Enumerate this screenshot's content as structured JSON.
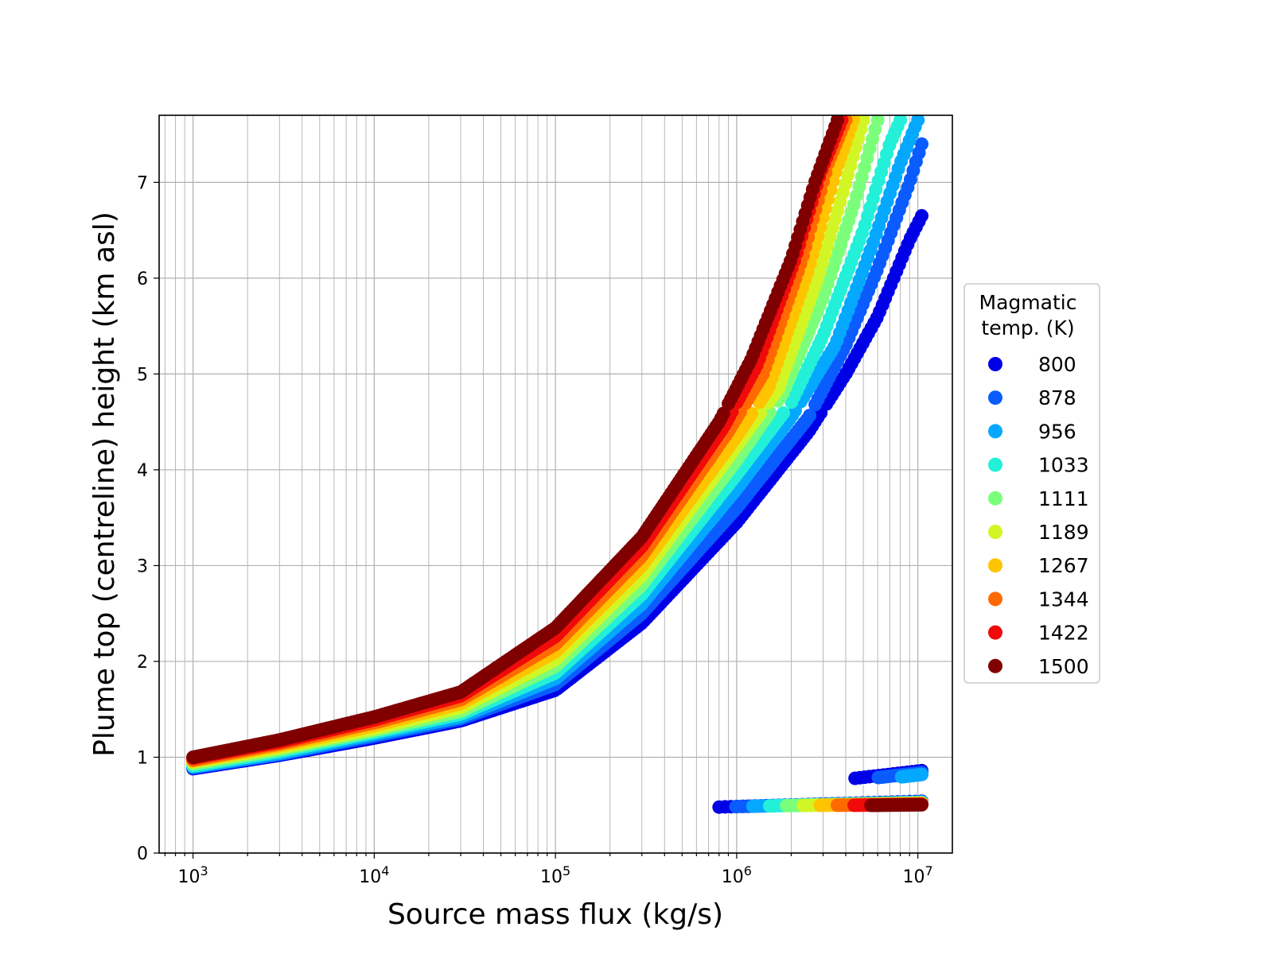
{
  "chart_data": {
    "type": "scatter",
    "title": "",
    "xlabel": "Source mass flux (kg/s)",
    "ylabel": "Plume top (centreline) height (km asl)",
    "xscale": "log",
    "xlim": [
      650,
      15500000
    ],
    "ylim": [
      0,
      7.7
    ],
    "x_ticks": [
      {
        "value": 1000,
        "base": "10",
        "exp": "3"
      },
      {
        "value": 10000,
        "base": "10",
        "exp": "4"
      },
      {
        "value": 100000,
        "base": "10",
        "exp": "5"
      },
      {
        "value": 1000000,
        "base": "10",
        "exp": "6"
      },
      {
        "value": 10000000,
        "base": "10",
        "exp": "7"
      }
    ],
    "y_ticks": [
      0,
      1,
      2,
      3,
      4,
      5,
      6,
      7
    ],
    "grid": true,
    "legend": {
      "title_lines": [
        "Magmatic",
        "temp. (K)"
      ],
      "placement": "right, outside plot"
    },
    "series": [
      {
        "name": "800",
        "color": "#0000e6",
        "main": [
          [
            1000,
            0.88
          ],
          [
            3000,
            1.02
          ],
          [
            10000,
            1.2
          ],
          [
            30000,
            1.38
          ],
          [
            100000,
            1.7
          ],
          [
            300000,
            2.4
          ],
          [
            1000000,
            3.45
          ],
          [
            2500000,
            4.4
          ],
          [
            4000000,
            5.0
          ],
          [
            6000000,
            5.6
          ],
          [
            9000000,
            6.4
          ],
          [
            10500000,
            6.65
          ]
        ]
      },
      {
        "name": "878",
        "color": "#0a5cff",
        "main": [
          [
            1000,
            0.89
          ],
          [
            3000,
            1.03
          ],
          [
            10000,
            1.22
          ],
          [
            30000,
            1.4
          ],
          [
            100000,
            1.76
          ],
          [
            300000,
            2.5
          ],
          [
            1000000,
            3.6
          ],
          [
            2500000,
            4.55
          ],
          [
            4000000,
            5.3
          ],
          [
            6000000,
            6.1
          ],
          [
            9000000,
            7.0
          ],
          [
            10500000,
            7.4
          ]
        ]
      },
      {
        "name": "956",
        "color": "#05a8ff",
        "main": [
          [
            1000,
            0.9
          ],
          [
            3000,
            1.04
          ],
          [
            10000,
            1.24
          ],
          [
            30000,
            1.42
          ],
          [
            100000,
            1.82
          ],
          [
            300000,
            2.6
          ],
          [
            1000000,
            3.8
          ],
          [
            2000000,
            4.55
          ],
          [
            3500000,
            5.3
          ],
          [
            5500000,
            6.3
          ],
          [
            8000000,
            7.2
          ],
          [
            10000000,
            7.65
          ]
        ]
      },
      {
        "name": "1033",
        "color": "#23f0d8",
        "main": [
          [
            1000,
            0.91
          ],
          [
            3000,
            1.06
          ],
          [
            10000,
            1.26
          ],
          [
            30000,
            1.45
          ],
          [
            100000,
            1.88
          ],
          [
            300000,
            2.7
          ],
          [
            1000000,
            3.95
          ],
          [
            2000000,
            4.7
          ],
          [
            3000000,
            5.4
          ],
          [
            5000000,
            6.5
          ],
          [
            7000000,
            7.4
          ],
          [
            8000000,
            7.65
          ]
        ]
      },
      {
        "name": "1111",
        "color": "#7bff7b",
        "main": [
          [
            1000,
            0.93
          ],
          [
            3000,
            1.08
          ],
          [
            10000,
            1.28
          ],
          [
            30000,
            1.48
          ],
          [
            100000,
            1.95
          ],
          [
            300000,
            2.8
          ],
          [
            1000000,
            4.1
          ],
          [
            1800000,
            4.8
          ],
          [
            3000000,
            5.8
          ],
          [
            4500000,
            6.8
          ],
          [
            6000000,
            7.65
          ]
        ]
      },
      {
        "name": "1189",
        "color": "#d2f625",
        "main": [
          [
            1000,
            0.95
          ],
          [
            3000,
            1.1
          ],
          [
            10000,
            1.3
          ],
          [
            30000,
            1.52
          ],
          [
            100000,
            2.02
          ],
          [
            300000,
            2.9
          ],
          [
            1000000,
            4.25
          ],
          [
            1700000,
            4.85
          ],
          [
            2800000,
            6.0
          ],
          [
            4000000,
            7.0
          ],
          [
            5000000,
            7.65
          ]
        ]
      },
      {
        "name": "1267",
        "color": "#ffc400",
        "main": [
          [
            1000,
            0.96
          ],
          [
            3000,
            1.12
          ],
          [
            10000,
            1.33
          ],
          [
            30000,
            1.56
          ],
          [
            100000,
            2.1
          ],
          [
            300000,
            3.0
          ],
          [
            1000000,
            4.35
          ],
          [
            1500000,
            4.85
          ],
          [
            2500000,
            6.1
          ],
          [
            3500000,
            7.1
          ],
          [
            4400000,
            7.65
          ]
        ]
      },
      {
        "name": "1344",
        "color": "#ff6a00",
        "main": [
          [
            1000,
            0.97
          ],
          [
            3000,
            1.14
          ],
          [
            10000,
            1.36
          ],
          [
            30000,
            1.6
          ],
          [
            100000,
            2.18
          ],
          [
            300000,
            3.1
          ],
          [
            900000,
            4.4
          ],
          [
            1400000,
            5.0
          ],
          [
            2300000,
            6.2
          ],
          [
            3200000,
            7.2
          ],
          [
            4000000,
            7.65
          ]
        ]
      },
      {
        "name": "1422",
        "color": "#f00a0a",
        "main": [
          [
            1000,
            0.99
          ],
          [
            3000,
            1.16
          ],
          [
            10000,
            1.39
          ],
          [
            30000,
            1.64
          ],
          [
            100000,
            2.26
          ],
          [
            300000,
            3.2
          ],
          [
            850000,
            4.45
          ],
          [
            1300000,
            5.1
          ],
          [
            2100000,
            6.2
          ],
          [
            2900000,
            7.1
          ],
          [
            3800000,
            7.65
          ]
        ]
      },
      {
        "name": "1500",
        "color": "#800000",
        "main": [
          [
            1000,
            1.0
          ],
          [
            3000,
            1.18
          ],
          [
            10000,
            1.42
          ],
          [
            30000,
            1.68
          ],
          [
            100000,
            2.35
          ],
          [
            300000,
            3.3
          ],
          [
            800000,
            4.5
          ],
          [
            1200000,
            5.15
          ],
          [
            2000000,
            6.2
          ],
          [
            2700000,
            7.0
          ],
          [
            3600000,
            7.65
          ]
        ]
      }
    ],
    "low_branch": {
      "x_range": [
        800000,
        10500000
      ],
      "y_range": [
        0.45,
        0.56
      ],
      "upper_streak": {
        "x_range": [
          4500000,
          10500000
        ],
        "y_range": [
          0.78,
          0.86
        ]
      }
    },
    "gap_y": [
      4.62,
      4.68
    ]
  }
}
